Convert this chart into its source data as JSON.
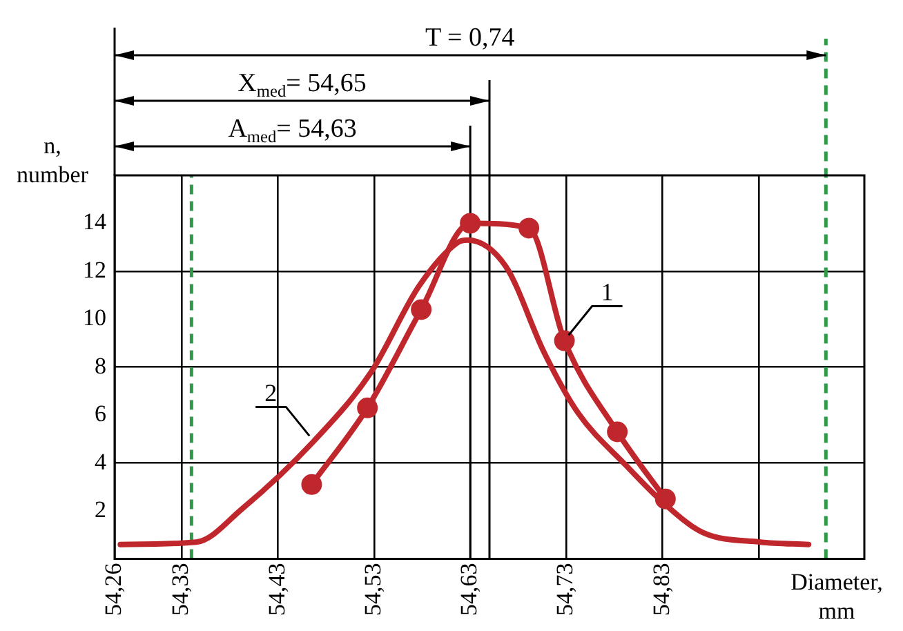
{
  "chart_data": {
    "type": "line",
    "xlabel": "Diameter, mm",
    "ylabel": "n, number",
    "xlim": [
      54.26,
      55.04
    ],
    "xticks": [
      {
        "value": 54.26,
        "label": "54,26"
      },
      {
        "value": 54.33,
        "label": "54,33"
      },
      {
        "value": 54.43,
        "label": "54,43"
      },
      {
        "value": 54.53,
        "label": "54,53"
      },
      {
        "value": 54.63,
        "label": "54,63"
      },
      {
        "value": 54.73,
        "label": "54,73"
      },
      {
        "value": 54.83,
        "label": "54,83"
      },
      {
        "value": 54.93,
        "label": null
      }
    ],
    "ylim": [
      0,
      16
    ],
    "yticks": [
      2,
      4,
      6,
      8,
      10,
      12,
      14
    ],
    "grid": true,
    "legend": false,
    "ref_lines": [
      {
        "axis": "x",
        "value": 54.34,
        "color": "#2e9a4a",
        "line_style": "dashed"
      },
      {
        "axis": "x",
        "value": 55.0,
        "color": "#2e9a4a",
        "line_style": "dashed"
      },
      {
        "axis": "x",
        "value": 54.65,
        "color": "#000000",
        "line_style": "solid"
      },
      {
        "axis": "x",
        "value": 54.63,
        "color": "#000000",
        "line_style": "solid"
      }
    ],
    "annotations": [
      "T = 0,74",
      "X$_{med}$= 54,65",
      "A$_{med}$= 54,63"
    ],
    "series": [
      {
        "name": "1",
        "color": "#c0272d",
        "marker": "circle",
        "x": [
          54.465,
          54.523,
          54.579,
          54.63,
          54.691,
          54.728,
          54.783,
          54.833
        ],
        "values": [
          3.1,
          6.3,
          10.4,
          14.0,
          13.8,
          9.1,
          5.3,
          2.5
        ]
      },
      {
        "name": "2",
        "color": "#c0272d",
        "marker": "none",
        "x": [
          54.266,
          54.345,
          54.393,
          54.467,
          54.527,
          54.577,
          54.617,
          54.627,
          54.667,
          54.707,
          54.742,
          54.792,
          54.832,
          54.872,
          54.932,
          54.982
        ],
        "values": [
          0.6,
          0.7,
          2.1,
          4.9,
          7.8,
          11.4,
          13.2,
          13.3,
          12.2,
          8.6,
          6.1,
          3.9,
          2.3,
          1.1,
          0.7,
          0.6
        ]
      }
    ]
  }
}
